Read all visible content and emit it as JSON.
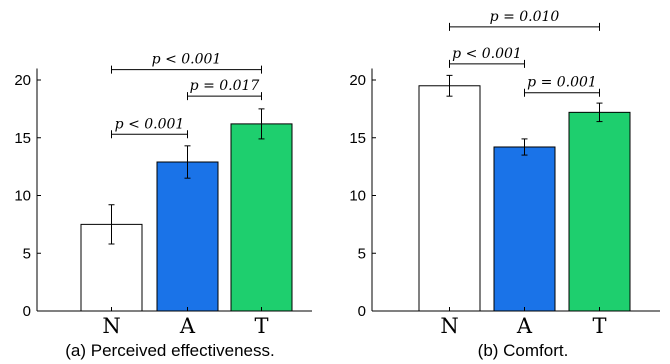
{
  "chart_data": [
    {
      "type": "bar",
      "caption": "(a) Perceived effectiveness.",
      "categories": [
        "N",
        "A",
        "T"
      ],
      "values": [
        7.5,
        12.9,
        16.2
      ],
      "error": [
        1.7,
        1.4,
        1.3
      ],
      "colors": [
        "#ffffff",
        "#1a73e8",
        "#1ecf6e"
      ],
      "ylim": [
        0,
        21
      ],
      "yticks": [
        0,
        5,
        10,
        15,
        20
      ],
      "significance": [
        {
          "from": 0,
          "to": 1,
          "label": "p < 0.001",
          "level": 15.3
        },
        {
          "from": 1,
          "to": 2,
          "label": "p = 0.017",
          "level": 18.6
        },
        {
          "from": 0,
          "to": 2,
          "label": "p < 0.001",
          "level": 20.9
        }
      ]
    },
    {
      "type": "bar",
      "caption": "(b) Comfort.",
      "categories": [
        "N",
        "A",
        "T"
      ],
      "values": [
        19.5,
        14.2,
        17.2
      ],
      "error": [
        0.9,
        0.7,
        0.8
      ],
      "colors": [
        "#ffffff",
        "#1a73e8",
        "#1ecf6e"
      ],
      "ylim": [
        0,
        21
      ],
      "yticks": [
        0,
        5,
        10,
        15,
        20
      ],
      "significance": [
        {
          "from": 1,
          "to": 2,
          "label": "p = 0.001",
          "level": 18.9
        },
        {
          "from": 0,
          "to": 1,
          "label": "p < 0.001",
          "level": 21.4
        },
        {
          "from": 0,
          "to": 2,
          "label": "p = 0.010",
          "level": 24.6
        }
      ]
    }
  ]
}
